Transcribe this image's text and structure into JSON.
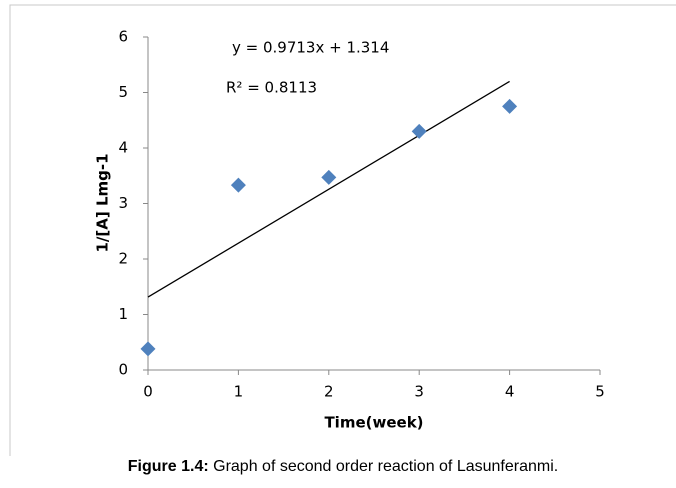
{
  "chart_data": {
    "type": "scatter",
    "x": [
      0,
      1,
      2,
      3,
      4
    ],
    "values": [
      0.38,
      3.33,
      3.47,
      4.3,
      4.75
    ],
    "color": "#4f81bd",
    "xlim": [
      0,
      5
    ],
    "xticks": [
      0,
      1,
      2,
      3,
      4,
      5
    ],
    "ylim": [
      0,
      6
    ],
    "yticks": [
      0,
      1,
      2,
      3,
      4,
      5,
      6
    ],
    "x_label": "Time(week)",
    "y_label": "1/[A] Lmg-1",
    "trendline": {
      "slope": 0.9713,
      "intercept": 1.314,
      "equation": "y = 0.9713x + 1.314",
      "r_squared": "R² = 0.8113"
    },
    "caption": {
      "label": "Figure 1.4:",
      "text": "Graph of second order reaction of Lasunferanmi."
    }
  }
}
